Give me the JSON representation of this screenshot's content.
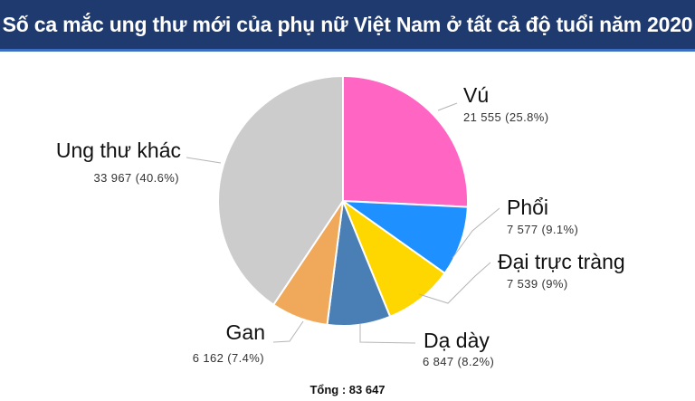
{
  "chart_data": {
    "type": "pie",
    "title": "Số ca mắc ung thư mới của phụ nữ Việt Nam ở tất cả độ tuổi năm 2020",
    "slices": [
      {
        "name": "Vú",
        "value": 21555,
        "value_text": "21 555 (25.8%)",
        "color": "#ff66c4"
      },
      {
        "name": "Phổi",
        "value": 7577,
        "value_text": "7 577 (9.1%)",
        "color": "#1e90ff"
      },
      {
        "name": "Đại trực tràng",
        "value": 7539,
        "value_text": "7 539 (9%)",
        "color": "#ffd700"
      },
      {
        "name": "Dạ dày",
        "value": 6847,
        "value_text": "6 847 (8.2%)",
        "color": "#4a7fb5"
      },
      {
        "name": "Gan",
        "value": 6162,
        "value_text": "6 162 (7.4%)",
        "color": "#f0a95a"
      },
      {
        "name": "Ung thư khác",
        "value": 33967,
        "value_text": "33 967 (40.6%)",
        "color": "#cccccc"
      }
    ],
    "total_text": "Tổng : 83 647"
  }
}
